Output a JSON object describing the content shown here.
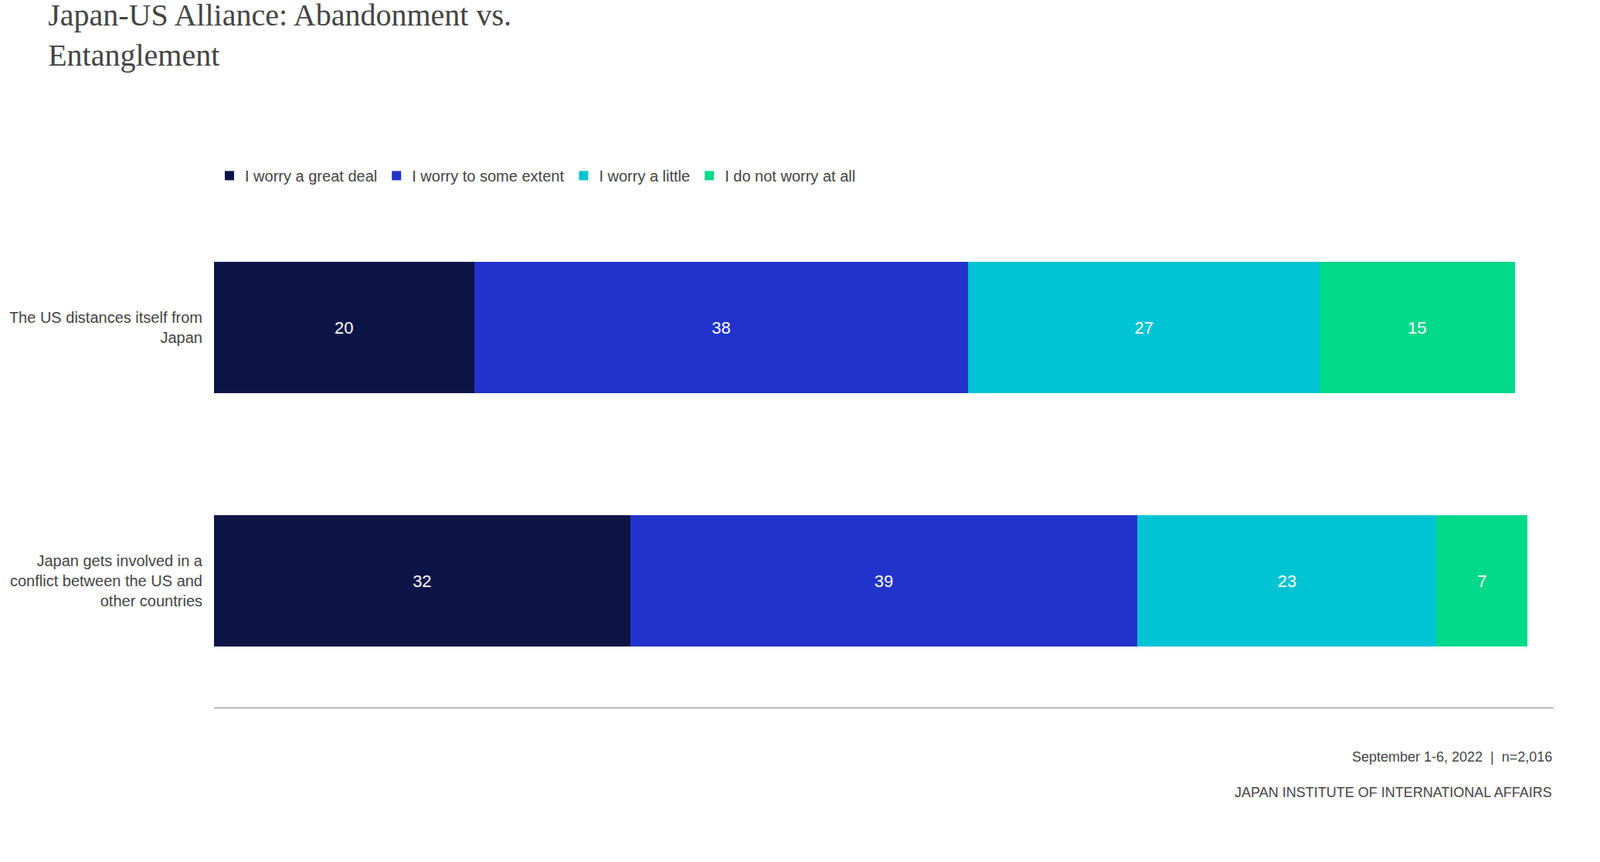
{
  "chart_data": {
    "type": "bar",
    "orientation": "horizontal",
    "stacked": true,
    "title": "Japan-US Alliance: Abandonment vs.\nEntanglement",
    "categories": [
      "The US distances itself from\nJapan",
      "Japan gets involved in a\nconflict between the US and\nother countries"
    ],
    "series": [
      {
        "name": "I worry a great deal",
        "color": "#0d1547",
        "values": [
          20,
          32
        ]
      },
      {
        "name": "I worry to some extent",
        "color": "#2233cc",
        "values": [
          38,
          39
        ]
      },
      {
        "name": "I worry a little",
        "color": "#00c4d4",
        "values": [
          27,
          23
        ]
      },
      {
        "name": "I do not worry at all",
        "color": "#00d98a",
        "values": [
          15,
          7
        ]
      }
    ],
    "xlim": [
      0,
      103
    ],
    "tick_labels": "y",
    "grid": false,
    "legend": "top",
    "data_labels": true,
    "annotations": [
      "September 1-6, 2022  |  n=2,016",
      "JAPAN INSTITUTE OF INTERNATIONAL AFFAIRS"
    ]
  }
}
